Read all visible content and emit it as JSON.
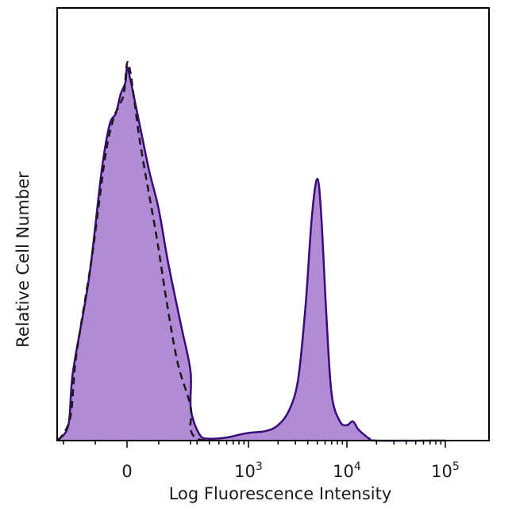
{
  "chart_data": {
    "type": "area",
    "title": "",
    "xlabel": "Log Fluorescence Intensity",
    "ylabel": "Relative Cell Number",
    "x_scale": "biexponential",
    "x_ticks": [
      {
        "value": 0,
        "label": "0"
      },
      {
        "value": 1000,
        "label": "10",
        "sup": "3"
      },
      {
        "value": 10000,
        "label": "10",
        "sup": "4"
      },
      {
        "value": 100000,
        "label": "10",
        "sup": "5"
      }
    ],
    "ylim": [
      0,
      100
    ],
    "grid": false,
    "legend": "none",
    "colors": {
      "stained_fill": "#b18bd6",
      "stained_line": "#3a0a7a",
      "control_line": "#1a1a1a",
      "axis": "#000000"
    },
    "series": [
      {
        "style": "filled-solid",
        "points": [
          [
            -300,
            0
          ],
          [
            -230,
            4
          ],
          [
            -170,
            18
          ],
          [
            -120,
            42
          ],
          [
            -80,
            70
          ],
          [
            -55,
            82
          ],
          [
            -35,
            85
          ],
          [
            -20,
            90
          ],
          [
            -5,
            93
          ],
          [
            0,
            97
          ],
          [
            10,
            94
          ],
          [
            25,
            88
          ],
          [
            45,
            80
          ],
          [
            70,
            70
          ],
          [
            100,
            60
          ],
          [
            130,
            46
          ],
          [
            170,
            30
          ],
          [
            210,
            18
          ],
          [
            260,
            8
          ],
          [
            320,
            1.5
          ],
          [
            400,
            0.5
          ],
          [
            600,
            0.8
          ],
          [
            800,
            1.5
          ],
          [
            1000,
            2
          ],
          [
            1500,
            2.5
          ],
          [
            2000,
            4
          ],
          [
            2600,
            8
          ],
          [
            3200,
            16
          ],
          [
            3800,
            35
          ],
          [
            4400,
            58
          ],
          [
            5000,
            68
          ],
          [
            5500,
            58
          ],
          [
            6200,
            32
          ],
          [
            7000,
            12
          ],
          [
            8500,
            5
          ],
          [
            10000,
            4
          ],
          [
            11500,
            5
          ],
          [
            13000,
            3
          ],
          [
            15000,
            1.5
          ],
          [
            17000,
            0.5
          ],
          [
            20000,
            0
          ],
          [
            100000,
            0
          ]
        ]
      },
      {
        "style": "dashed",
        "points": [
          [
            -290,
            0
          ],
          [
            -220,
            6
          ],
          [
            -160,
            22
          ],
          [
            -110,
            48
          ],
          [
            -70,
            73
          ],
          [
            -45,
            83
          ],
          [
            -25,
            87
          ],
          [
            -10,
            90
          ],
          [
            0,
            98
          ],
          [
            10,
            96
          ],
          [
            22,
            89
          ],
          [
            40,
            78
          ],
          [
            65,
            66
          ],
          [
            95,
            52
          ],
          [
            125,
            36
          ],
          [
            160,
            20
          ],
          [
            200,
            9
          ],
          [
            250,
            3
          ],
          [
            300,
            0.5
          ],
          [
            400,
            0
          ]
        ]
      }
    ]
  }
}
